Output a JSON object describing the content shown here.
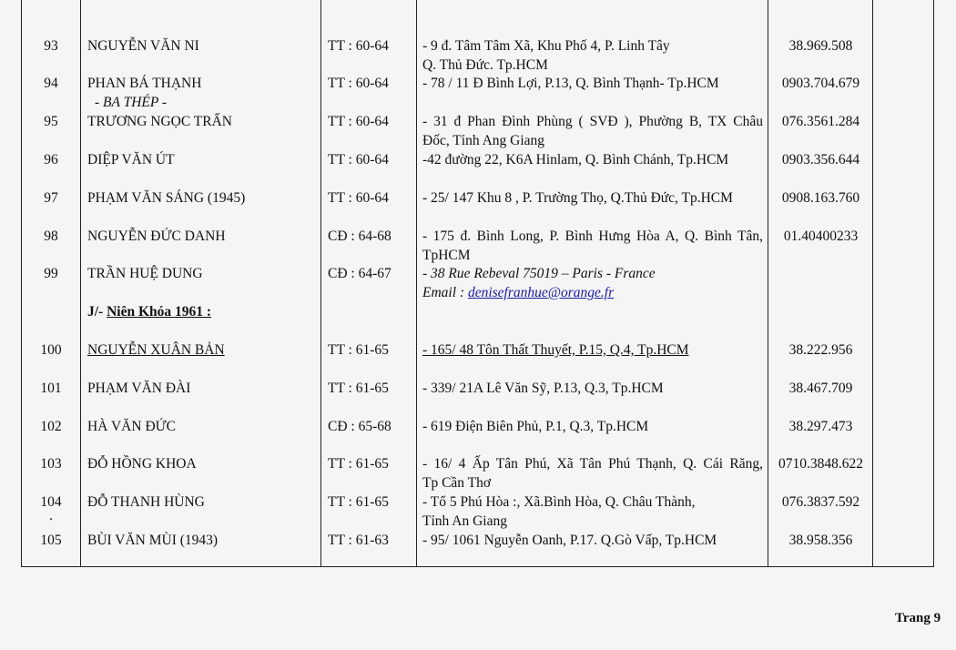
{
  "rows": [
    {
      "no": "93",
      "name": "NGUYỄN VĂN NI",
      "course": "TT : 60-64",
      "address": [
        "- 9 đ. Tâm Tâm Xã, Khu Phố 4, P. Linh Tây",
        "Q. Thủ Đức. Tp.HCM"
      ],
      "phone": "38.969.508"
    },
    {
      "no": "94",
      "name": "PHAN BÁ THẠNH",
      "name_note": "- BA THÉP -",
      "course": "TT : 60-64",
      "address": [
        "- 78 / 11 Đ Bình Lợi, P.13, Q. Bình Thạnh- Tp.HCM"
      ],
      "phone": "0903.704.679"
    },
    {
      "no": "95",
      "name": "TRƯƠNG NGỌC  TRẤN",
      "course": "TT : 60-64",
      "address": [
        " - 31 đ Phan Đình Phùng ( SVĐ ), Phường B, TX Châu",
        "Đốc, Tỉnh Ang Giang"
      ],
      "address_justify_first": true,
      "phone": "076.3561.284"
    },
    {
      "no": "96",
      "name": "DIỆP VĂN ÚT",
      "course": "TT : 60-64",
      "address": [
        "-42 đường 22, K6A Hinlam, Q. Bình Chánh, Tp.HCM"
      ],
      "phone": "0903.356.644"
    },
    {
      "no": "97",
      "name": "PHẠM VĂN SÁNG (1945)",
      "course": "TT : 60-64",
      "address": [
        "- 25/ 147 Khu 8 , P. Trường Thọ, Q.Thủ Đức, Tp.HCM"
      ],
      "phone": "0908.163.760"
    },
    {
      "no": "98",
      "name": "NGUYỄN ĐỨC DANH",
      "course": "CĐ : 64-68",
      "address": [
        "- 175 đ. Bình Long, P. Bình Hưng Hòa A, Q. Bình Tân,",
        "TpHCM"
      ],
      "address_justify_first": true,
      "phone": "01.40400233"
    },
    {
      "no": "99",
      "name": "TRẦN HUỆ DUNG",
      "course": "CĐ : 64-67",
      "address": [
        "- 38 Rue Rebeval 75019 – Paris - France"
      ],
      "address_italic": true,
      "email_label": "Email : ",
      "email": "denisefranhue@orange.fr",
      "phone": ""
    },
    {
      "section": true,
      "prefix": "J/-  ",
      "title": "Niên Khóa  1961 :"
    },
    {
      "no": "100",
      "name": "NGUYỄN XUÂN  BẢN",
      "course": "TT : 61-65",
      "address": [
        "- 165/ 48  Tôn Thất Thuyết, P.15, Q.4, Tp.HCM"
      ],
      "underline": true,
      "phone": "38.222.956"
    },
    {
      "no": "101",
      "name": "PHẠM VĂN ĐÀI",
      "course": "TT : 61-65",
      "address": [
        "- 339/ 21A Lê Văn Sỹ, P.13, Q.3, Tp.HCM"
      ],
      "phone": "38.467.709"
    },
    {
      "no": "102",
      "name": "HÀ VĂN  ĐỨC",
      "course": "CĐ : 65-68",
      "address": [
        "- 619  Điện Biên Phủ, P.1, Q.3, Tp.HCM"
      ],
      "phone": "38.297.473"
    },
    {
      "no": "103",
      "name": "ĐỖ HỒNG KHOA",
      "course": "TT :  61-65",
      "address": [
        "- 16/ 4 Ấp Tân Phú, Xã Tân Phú Thạnh, Q. Cái Răng,",
        "Tp Cần Thơ"
      ],
      "address_justify_first": true,
      "phone": "0710.3848.622"
    },
    {
      "no": "104",
      "no_note": ".",
      "name": "ĐỖ THANH HÙNG",
      "course": "TT : 61-65",
      "address": [
        "- Tổ 5 Phú Hòa  :, Xã.Bình Hòa, Q. Châu Thành,",
        "Tỉnh An Giang"
      ],
      "phone": "076.3837.592"
    },
    {
      "no": "105",
      "name": "BÙI VĂN  MÙI (1943)",
      "course": "TT : 61-63",
      "address": [
        "- 95/ 1061  Nguyễn Oanh, P.17. Q.Gò Vấp, Tp.HCM"
      ],
      "phone": "38.958.356"
    }
  ],
  "footer": {
    "page_label": "Trang 9"
  },
  "colors": {
    "email_link": "#1a1aa6",
    "border": "#222222",
    "background": "#f5f5f5"
  }
}
